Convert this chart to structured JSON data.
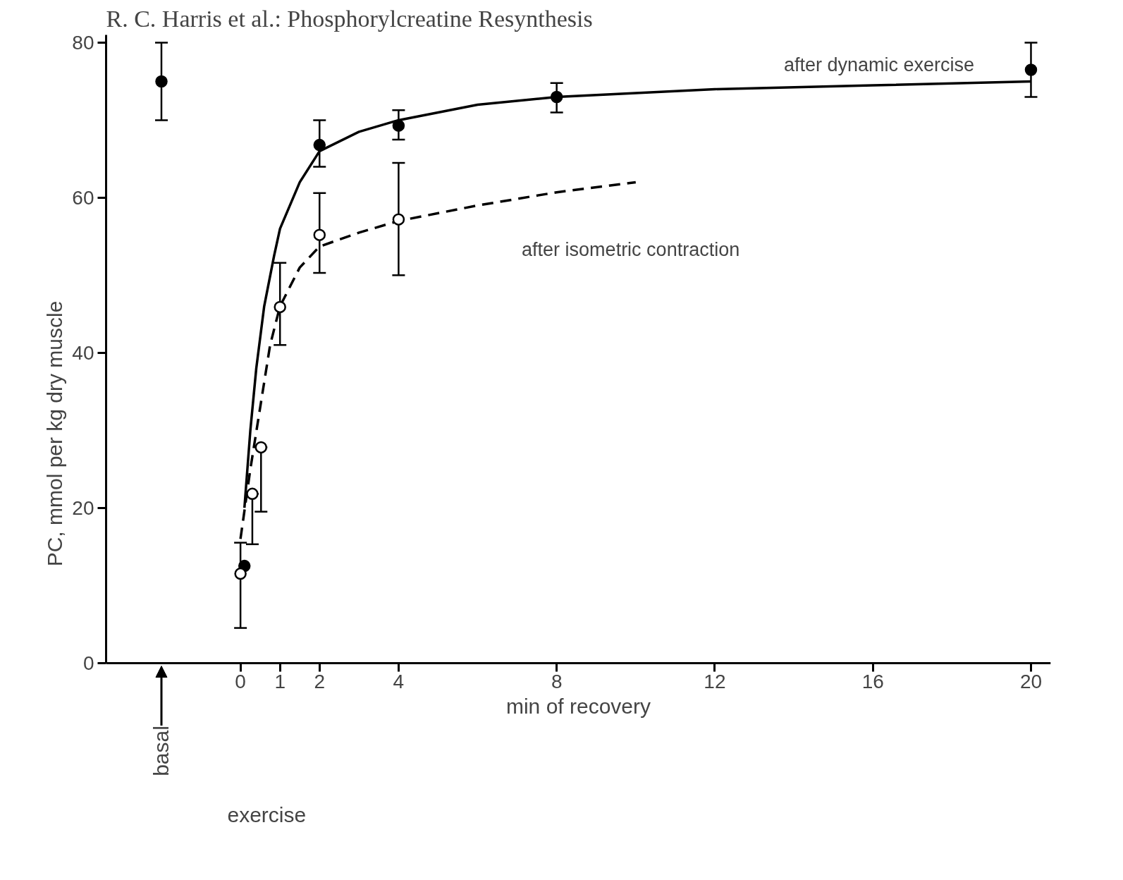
{
  "chart_data": {
    "type": "scatter",
    "title": "R. C. Harris et al.: Phosphorylcreatine Resynthesis",
    "xlabel": "min of recovery",
    "ylabel": "PC, mmol per kg dry muscle",
    "xlim": [
      -3.4,
      20.5
    ],
    "ylim": [
      0,
      81
    ],
    "xticks": [
      0,
      1,
      2,
      4,
      8,
      12,
      16,
      20
    ],
    "yticks": [
      0,
      20,
      40,
      60,
      80
    ],
    "grid": false,
    "annotations": [
      "basal",
      "exercise"
    ],
    "series": [
      {
        "color": "#000000",
        "marker": "circle",
        "x": [
          -2
        ],
        "values": [
          75
        ],
        "errors": [
          [
            70,
            80
          ]
        ]
      },
      {
        "name": "after dynamic exercise",
        "type": "line",
        "line_style": "solid",
        "marker": "none",
        "color": "#000000",
        "x": [
          0.1,
          0.25,
          0.4,
          0.6,
          0.85,
          1.0,
          1.5,
          2,
          3,
          4,
          6,
          8,
          12,
          16,
          20
        ],
        "values": [
          20,
          30,
          38,
          46,
          52.5,
          56,
          62,
          66,
          68.5,
          70,
          72,
          73,
          74,
          74.5,
          75
        ]
      },
      {
        "name": "after isometric contraction",
        "type": "line",
        "line_style": "dashed",
        "marker": "none",
        "color": "#000000",
        "x": [
          0,
          0.25,
          0.5,
          0.75,
          1,
          1.5,
          2,
          3,
          4,
          6,
          8,
          10
        ],
        "values": [
          16,
          25,
          33,
          41,
          46,
          51,
          53.7,
          55.5,
          57,
          59,
          60.7,
          62
        ]
      },
      {
        "color": "#000000",
        "marker": "circle",
        "x": [
          0.1,
          2,
          4,
          8,
          20
        ],
        "values": [
          12.5,
          66.8,
          69.3,
          73,
          76.5
        ],
        "errors": [
          null,
          [
            64,
            70
          ],
          [
            67.5,
            71.3
          ],
          [
            71,
            74.8
          ],
          [
            73,
            80
          ]
        ]
      },
      {
        "color": "#ffffff",
        "marker": "circle",
        "x": [
          0,
          0.3,
          0.52,
          1,
          2,
          4
        ],
        "values": [
          11.5,
          21.8,
          27.8,
          45.9,
          55.2,
          57.2
        ],
        "errors": [
          [
            4.5,
            15.5
          ],
          [
            15.3,
            21.8
          ],
          [
            19.5,
            27.8
          ],
          [
            41,
            51.6
          ],
          [
            50.3,
            60.6
          ],
          [
            50,
            64.5
          ]
        ]
      }
    ]
  }
}
